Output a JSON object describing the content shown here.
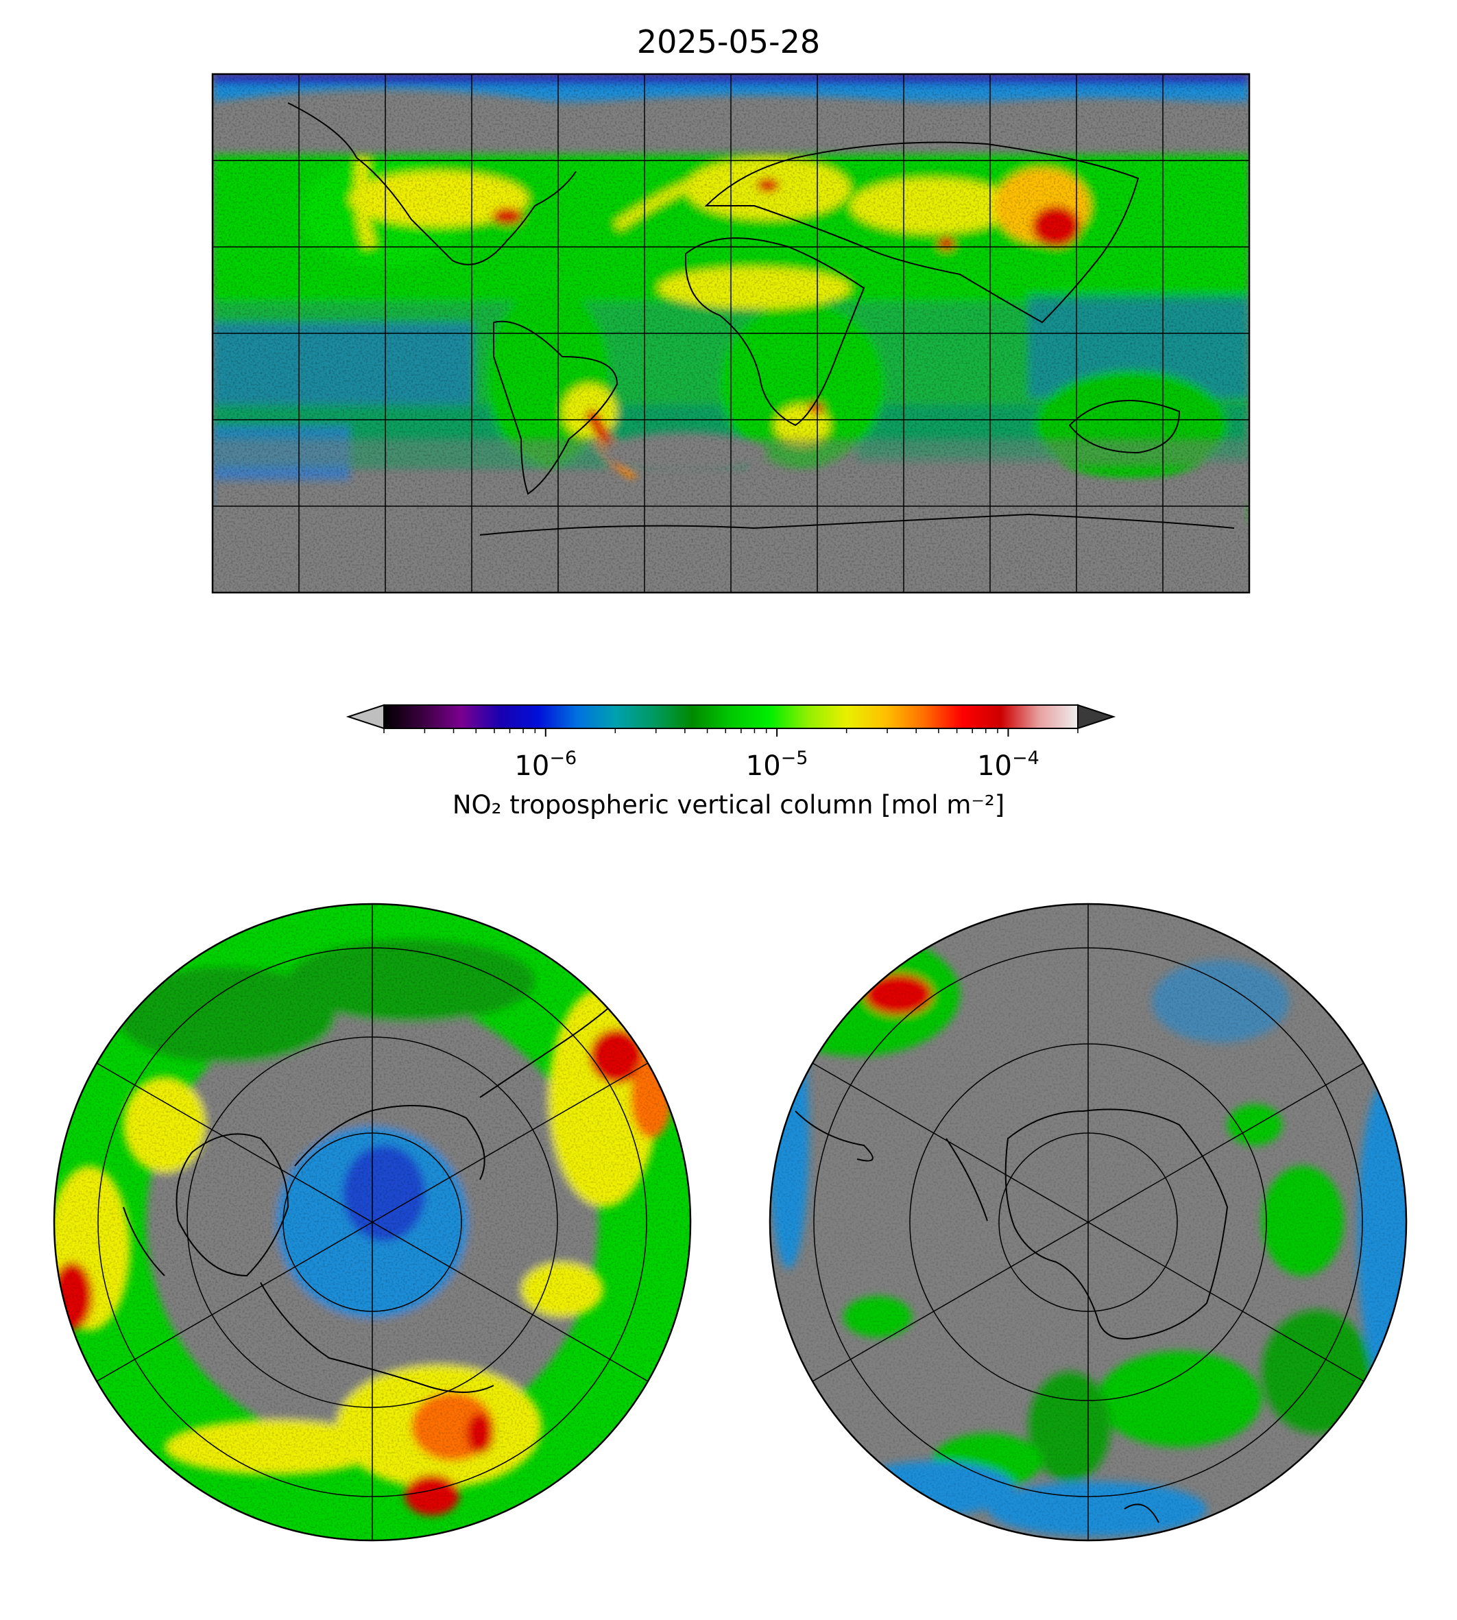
{
  "title": "2025-05-28",
  "colorbar": {
    "label": "NO₂ tropospheric vertical column [mol m⁻²]",
    "scale": "log",
    "vmin": 2e-07,
    "vmax": 0.0002,
    "extend": "both",
    "under_color": "#bfbfbf",
    "over_color": "#3a3a3a",
    "colormap_stops": [
      "#000000",
      "#3b0040",
      "#7a0090",
      "#1a00b0",
      "#0010d8",
      "#0070e0",
      "#00a0b0",
      "#009a60",
      "#008a00",
      "#00c800",
      "#00ee00",
      "#90f000",
      "#e8f000",
      "#ffc000",
      "#ff7000",
      "#ff0000",
      "#cc0000",
      "#e8a0a0",
      "#eeeeee"
    ],
    "ticks": [
      {
        "value": 1e-06,
        "base": "10",
        "exponent": "−6"
      },
      {
        "value": 1e-05,
        "base": "10",
        "exponent": "−5"
      },
      {
        "value": 0.0001,
        "base": "10",
        "exponent": "−4"
      }
    ]
  },
  "maps": {
    "global": {
      "projection": "PlateCarree",
      "gridlines": true,
      "coastlines": true,
      "missing_color": "#808080"
    },
    "north_polar": {
      "projection": "NorthPolarStereo",
      "gridlines": true,
      "coastlines": true,
      "missing_color": "#808080"
    },
    "south_polar": {
      "projection": "SouthPolarStereo",
      "gridlines": true,
      "coastlines": true,
      "missing_color": "#808080"
    }
  },
  "colors": {
    "green_field": "#00d400",
    "dark_green": "#10a010",
    "yellow": "#f0f000",
    "orange": "#ffa000",
    "red": "#e00000",
    "blue": "#1e6ee0",
    "gray": "#808080"
  }
}
